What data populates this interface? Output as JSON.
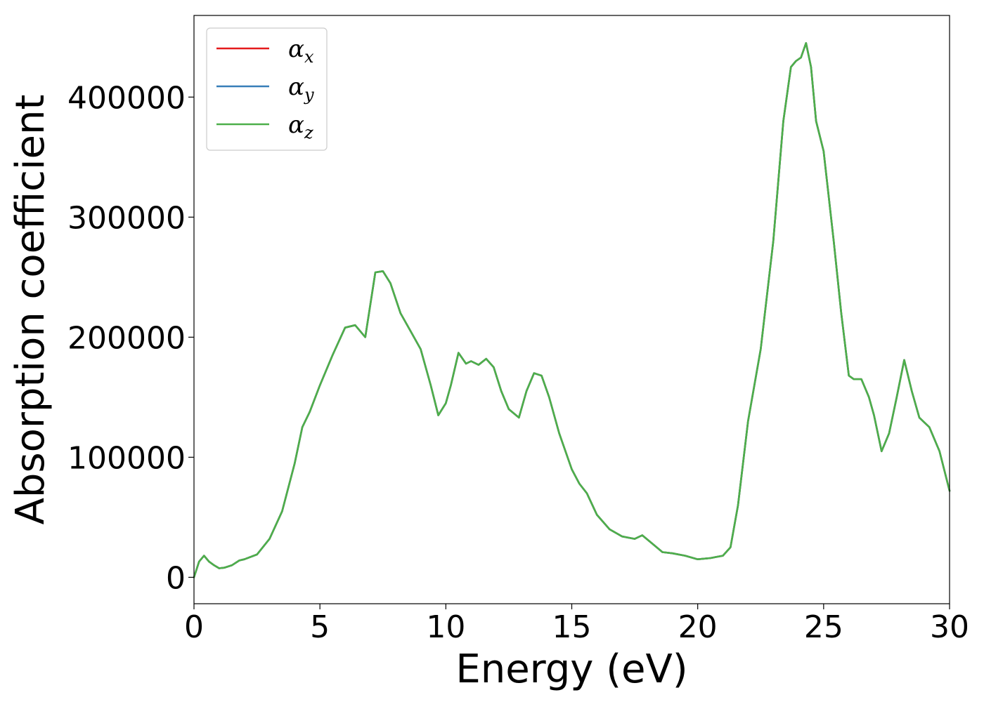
{
  "chart_data": {
    "type": "line",
    "title": "",
    "xlabel": "Energy (eV)",
    "ylabel": "Absorption coefficient",
    "xlim": [
      0,
      30
    ],
    "ylim": [
      -22000,
      468000
    ],
    "xticks": [
      0,
      5,
      10,
      15,
      20,
      25,
      30
    ],
    "xtick_labels": [
      "0",
      "5",
      "10",
      "15",
      "20",
      "25",
      "30"
    ],
    "yticks": [
      0,
      100000,
      200000,
      300000,
      400000
    ],
    "ytick_labels": [
      "0",
      "100000",
      "200000",
      "300000",
      "400000"
    ],
    "grid": false,
    "legend_position": "top-left",
    "x": [
      0.0,
      0.2,
      0.4,
      0.6,
      0.8,
      1.0,
      1.2,
      1.5,
      1.8,
      2.0,
      2.5,
      3.0,
      3.5,
      4.0,
      4.3,
      4.6,
      5.0,
      5.5,
      6.0,
      6.4,
      6.8,
      7.2,
      7.5,
      7.8,
      8.2,
      8.6,
      9.0,
      9.4,
      9.7,
      10.0,
      10.2,
      10.5,
      10.8,
      11.0,
      11.3,
      11.6,
      11.9,
      12.2,
      12.5,
      12.9,
      13.2,
      13.5,
      13.8,
      14.1,
      14.5,
      15.0,
      15.3,
      15.6,
      16.0,
      16.5,
      17.0,
      17.5,
      17.8,
      18.2,
      18.6,
      19.0,
      19.5,
      20.0,
      20.5,
      21.0,
      21.3,
      21.6,
      22.0,
      22.5,
      23.0,
      23.4,
      23.7,
      23.9,
      24.1,
      24.3,
      24.5,
      24.7,
      25.0,
      25.4,
      25.7,
      26.0,
      26.2,
      26.5,
      26.8,
      27.0,
      27.3,
      27.6,
      27.9,
      28.2,
      28.5,
      28.8,
      29.2,
      29.6,
      30.0
    ],
    "series": [
      {
        "name": "α",
        "subscript": "x",
        "color": "#e41a1c",
        "values": [
          0,
          13000,
          18000,
          13000,
          10000,
          7500,
          8000,
          10000,
          14000,
          15000,
          19000,
          32000,
          55000,
          95000,
          125000,
          138000,
          160000,
          185000,
          208000,
          210000,
          200000,
          254000,
          255000,
          245000,
          220000,
          205000,
          190000,
          160000,
          135000,
          145000,
          160000,
          187000,
          178000,
          180000,
          177000,
          182000,
          175000,
          155000,
          140000,
          133000,
          155000,
          170000,
          168000,
          150000,
          120000,
          90000,
          78000,
          70000,
          52000,
          40000,
          34000,
          32000,
          35000,
          28000,
          21000,
          20000,
          18000,
          15000,
          16000,
          18000,
          25000,
          60000,
          130000,
          190000,
          280000,
          380000,
          425000,
          430000,
          433000,
          445000,
          425000,
          380000,
          355000,
          280000,
          220000,
          168000,
          165000,
          165000,
          150000,
          135000,
          105000,
          120000,
          150000,
          181000,
          155000,
          133000,
          125000,
          105000,
          72000
        ]
      },
      {
        "name": "α",
        "subscript": "y",
        "color": "#377eb8",
        "values": [
          0,
          13000,
          18000,
          13000,
          10000,
          7500,
          8000,
          10000,
          14000,
          15000,
          19000,
          32000,
          55000,
          95000,
          125000,
          138000,
          160000,
          185000,
          208000,
          210000,
          200000,
          254000,
          255000,
          245000,
          220000,
          205000,
          190000,
          160000,
          135000,
          145000,
          160000,
          187000,
          178000,
          180000,
          177000,
          182000,
          175000,
          155000,
          140000,
          133000,
          155000,
          170000,
          168000,
          150000,
          120000,
          90000,
          78000,
          70000,
          52000,
          40000,
          34000,
          32000,
          35000,
          28000,
          21000,
          20000,
          18000,
          15000,
          16000,
          18000,
          25000,
          60000,
          130000,
          190000,
          280000,
          380000,
          425000,
          430000,
          433000,
          445000,
          425000,
          380000,
          355000,
          280000,
          220000,
          168000,
          165000,
          165000,
          150000,
          135000,
          105000,
          120000,
          150000,
          181000,
          155000,
          133000,
          125000,
          105000,
          72000
        ]
      },
      {
        "name": "α",
        "subscript": "z",
        "color": "#4daf4a",
        "values": [
          0,
          13000,
          18000,
          13000,
          10000,
          7500,
          8000,
          10000,
          14000,
          15000,
          19000,
          32000,
          55000,
          95000,
          125000,
          138000,
          160000,
          185000,
          208000,
          210000,
          200000,
          254000,
          255000,
          245000,
          220000,
          205000,
          190000,
          160000,
          135000,
          145000,
          160000,
          187000,
          178000,
          180000,
          177000,
          182000,
          175000,
          155000,
          140000,
          133000,
          155000,
          170000,
          168000,
          150000,
          120000,
          90000,
          78000,
          70000,
          52000,
          40000,
          34000,
          32000,
          35000,
          28000,
          21000,
          20000,
          18000,
          15000,
          16000,
          18000,
          25000,
          60000,
          130000,
          190000,
          280000,
          380000,
          425000,
          430000,
          433000,
          445000,
          425000,
          380000,
          355000,
          280000,
          220000,
          168000,
          165000,
          165000,
          150000,
          135000,
          105000,
          120000,
          150000,
          181000,
          155000,
          133000,
          125000,
          105000,
          72000
        ]
      }
    ]
  }
}
